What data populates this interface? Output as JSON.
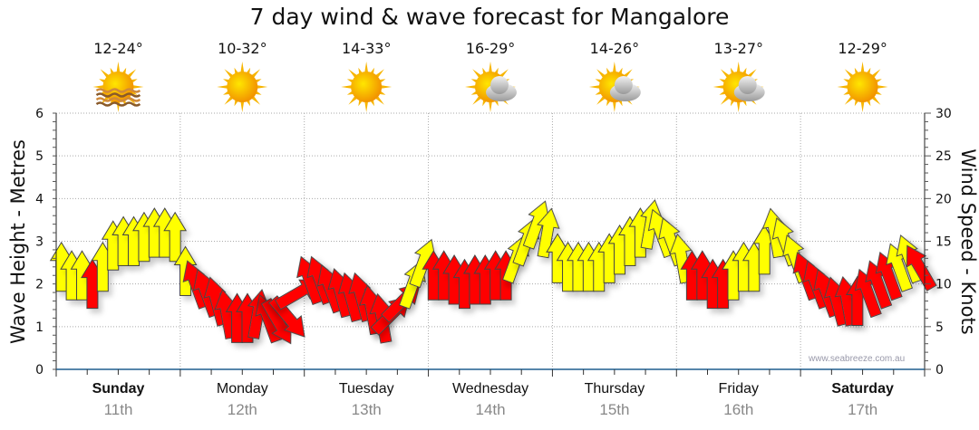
{
  "title": "7 day wind & wave forecast for Mangalore",
  "credit": "www.seabreeze.com.au",
  "colors": {
    "onshore": "#ffff00",
    "offshore": "#ff0000",
    "outline": "#444444",
    "axis": "#1f5f8f"
  },
  "days": [
    {
      "name": "Sunday",
      "date": "11th",
      "temp": "12-24°",
      "icon": "sun-haze-icon",
      "bold": true
    },
    {
      "name": "Monday",
      "date": "12th",
      "temp": "10-32°",
      "icon": "sun-icon",
      "bold": false
    },
    {
      "name": "Tuesday",
      "date": "13th",
      "temp": "14-33°",
      "icon": "sun-icon",
      "bold": false
    },
    {
      "name": "Wednesday",
      "date": "14th",
      "temp": "16-29°",
      "icon": "sun-cloud-icon",
      "bold": false
    },
    {
      "name": "Thursday",
      "date": "15th",
      "temp": "14-26°",
      "icon": "sun-cloud-icon",
      "bold": false
    },
    {
      "name": "Friday",
      "date": "16th",
      "temp": "13-27°",
      "icon": "sun-cloud-icon",
      "bold": false
    },
    {
      "name": "Saturday",
      "date": "17th",
      "temp": "12-29°",
      "icon": "sun-icon",
      "bold": true
    }
  ],
  "chart_data": {
    "type": "scatter",
    "title": "7 day wind & wave forecast for Mangalore",
    "ylabel_left": "Wave Height - Metres",
    "ylabel_right": "Wind Speed - Knots",
    "ylim_left": [
      0,
      6
    ],
    "ylim_right": [
      0,
      30
    ],
    "yticks_left": [
      "0",
      "1",
      "2",
      "3",
      "4",
      "5",
      "6"
    ],
    "yticks_right": [
      "0",
      "5",
      "10",
      "15",
      "20",
      "25",
      "30"
    ],
    "grid": true,
    "interval_hours": 2,
    "wind_knots": [
      12,
      11,
      11,
      10,
      12,
      14.5,
      15,
      15,
      15.5,
      16,
      16,
      15.5,
      11.5,
      10,
      9,
      8,
      6.5,
      6,
      6,
      6.5,
      6,
      5.5,
      6,
      9,
      10.5,
      10.5,
      9.5,
      9,
      8.5,
      8.5,
      7,
      6,
      6.5,
      8,
      10,
      12.5,
      11,
      11,
      10.5,
      10,
      10.5,
      10.5,
      11,
      11,
      13,
      15,
      17,
      16,
      13,
      12,
      12,
      12,
      12,
      13,
      14,
      15,
      16,
      17,
      16,
      15,
      13,
      11,
      11,
      10,
      10,
      11,
      12,
      12,
      14,
      16,
      15,
      13,
      11,
      10,
      9,
      8,
      8,
      8,
      9,
      10,
      11,
      12,
      13,
      12
    ],
    "wind_direction_deg": [
      0,
      0,
      0,
      0,
      0,
      0,
      0,
      0,
      0,
      0,
      0,
      0,
      0,
      -20,
      -20,
      -15,
      -10,
      0,
      0,
      10,
      -20,
      150,
      140,
      60,
      -20,
      -20,
      -20,
      -15,
      -15,
      -15,
      -10,
      -10,
      45,
      45,
      20,
      20,
      0,
      0,
      0,
      0,
      0,
      0,
      0,
      0,
      20,
      20,
      20,
      10,
      0,
      0,
      0,
      0,
      0,
      0,
      0,
      0,
      0,
      10,
      -20,
      -20,
      -10,
      0,
      0,
      0,
      0,
      0,
      0,
      0,
      0,
      -10,
      -20,
      -20,
      -20,
      -20,
      -20,
      -15,
      -10,
      0,
      -20,
      -20,
      -20,
      -20,
      -20,
      -30
    ],
    "offshore": [
      0,
      0,
      0,
      1,
      0,
      0,
      0,
      0,
      0,
      0,
      0,
      0,
      0,
      1,
      1,
      1,
      1,
      1,
      1,
      1,
      1,
      1,
      1,
      1,
      1,
      1,
      1,
      1,
      1,
      1,
      1,
      1,
      1,
      1,
      0,
      0,
      1,
      1,
      1,
      1,
      1,
      1,
      1,
      1,
      0,
      0,
      0,
      0,
      0,
      0,
      0,
      0,
      0,
      0,
      0,
      0,
      0,
      0,
      0,
      0,
      0,
      1,
      1,
      1,
      1,
      0,
      0,
      0,
      0,
      0,
      0,
      0,
      1,
      1,
      1,
      1,
      1,
      1,
      1,
      1,
      1,
      0,
      0,
      1
    ]
  }
}
